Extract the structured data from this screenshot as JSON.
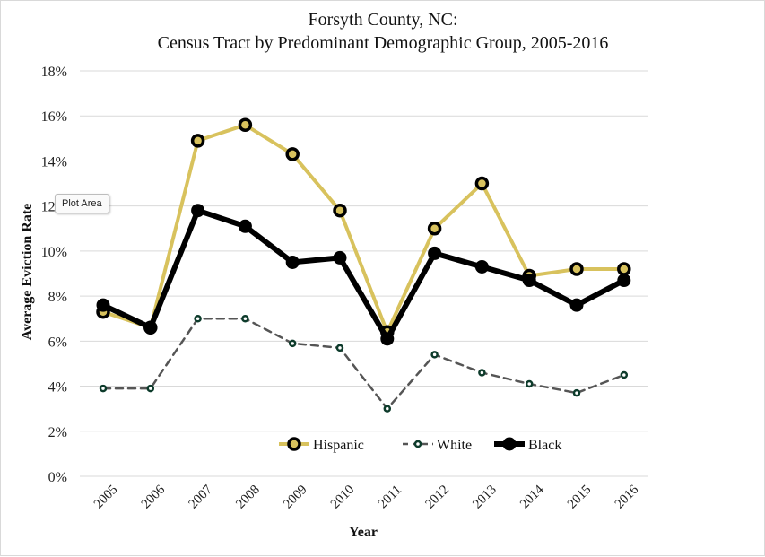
{
  "tooltip": "Plot Area",
  "chart_data": {
    "type": "line",
    "title": "Forsyth County, NC:",
    "subtitle": "Census Tract by Predominant Demographic Group, 2005-2016",
    "xlabel": "Year",
    "ylabel": "Average Eviction Rate",
    "ylim": [
      0,
      18
    ],
    "y_ticks": [
      "0%",
      "2%",
      "4%",
      "6%",
      "8%",
      "10%",
      "12%",
      "14%",
      "16%",
      "18%"
    ],
    "grid": true,
    "legend_position": "bottom",
    "categories": [
      "2005",
      "2006",
      "2007",
      "2008",
      "2009",
      "2010",
      "2011",
      "2012",
      "2013",
      "2014",
      "2015",
      "2016"
    ],
    "series": [
      {
        "name": "Hispanic",
        "color": "#d8c25d",
        "marker_fill": "#d8c25d",
        "style": "solid",
        "values": [
          7.3,
          6.6,
          14.9,
          15.6,
          14.3,
          11.8,
          6.4,
          11.0,
          13.0,
          8.9,
          9.2,
          9.2
        ]
      },
      {
        "name": "White",
        "color": "#555555",
        "marker_fill": "#ffffff",
        "style": "dashed",
        "values": [
          3.9,
          3.9,
          7.0,
          7.0,
          5.9,
          5.7,
          3.0,
          5.4,
          4.6,
          4.1,
          3.7,
          4.5
        ]
      },
      {
        "name": "Black",
        "color": "#000000",
        "marker_fill": "#000000",
        "style": "solid",
        "values": [
          7.6,
          6.6,
          11.8,
          11.1,
          9.5,
          9.7,
          6.1,
          9.9,
          9.3,
          8.7,
          7.6,
          8.7
        ]
      }
    ]
  }
}
